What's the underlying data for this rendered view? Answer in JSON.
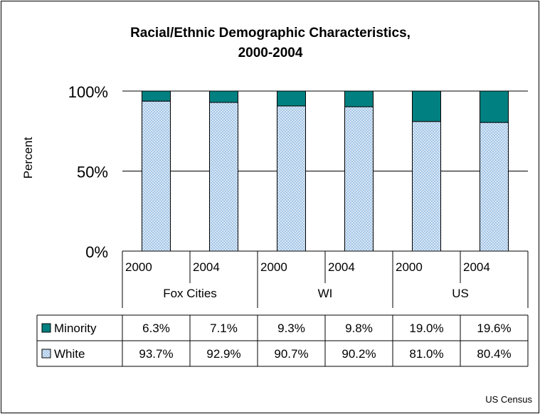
{
  "chart_data": {
    "type": "bar",
    "stacked": true,
    "percent_stacked": true,
    "title": "Racial/Ethnic Demographic Characteristics, 2000-2004",
    "title_lines": [
      "Racial/Ethnic Demographic Characteristics,",
      "2000-2004"
    ],
    "ylabel": "Percent",
    "xlabel": "",
    "ylim": [
      0,
      100
    ],
    "yticks": [
      "0%",
      "50%",
      "100%"
    ],
    "grid": true,
    "legend": "left, within data table",
    "groups": [
      {
        "name": "Fox Cities",
        "years": [
          "2000",
          "2004"
        ]
      },
      {
        "name": "WI",
        "years": [
          "2000",
          "2004"
        ]
      },
      {
        "name": "US",
        "years": [
          "2000",
          "2004"
        ]
      }
    ],
    "categories": [
      "2000",
      "2004",
      "2000",
      "2004",
      "2000",
      "2004"
    ],
    "series": [
      {
        "name": "Minority",
        "color": "#008080",
        "values": [
          6.3,
          7.1,
          9.3,
          9.8,
          19.0,
          19.6
        ],
        "labels": [
          "6.3%",
          "7.1%",
          "9.3%",
          "9.8%",
          "19.0%",
          "19.6%"
        ]
      },
      {
        "name": "White",
        "color": "#cfe3f5",
        "pattern": "dotted",
        "values": [
          93.7,
          92.9,
          90.7,
          90.2,
          81.0,
          80.4
        ],
        "labels": [
          "93.7%",
          "92.9%",
          "90.7%",
          "90.2%",
          "81.0%",
          "80.4%"
        ]
      }
    ],
    "source": "US Census"
  }
}
